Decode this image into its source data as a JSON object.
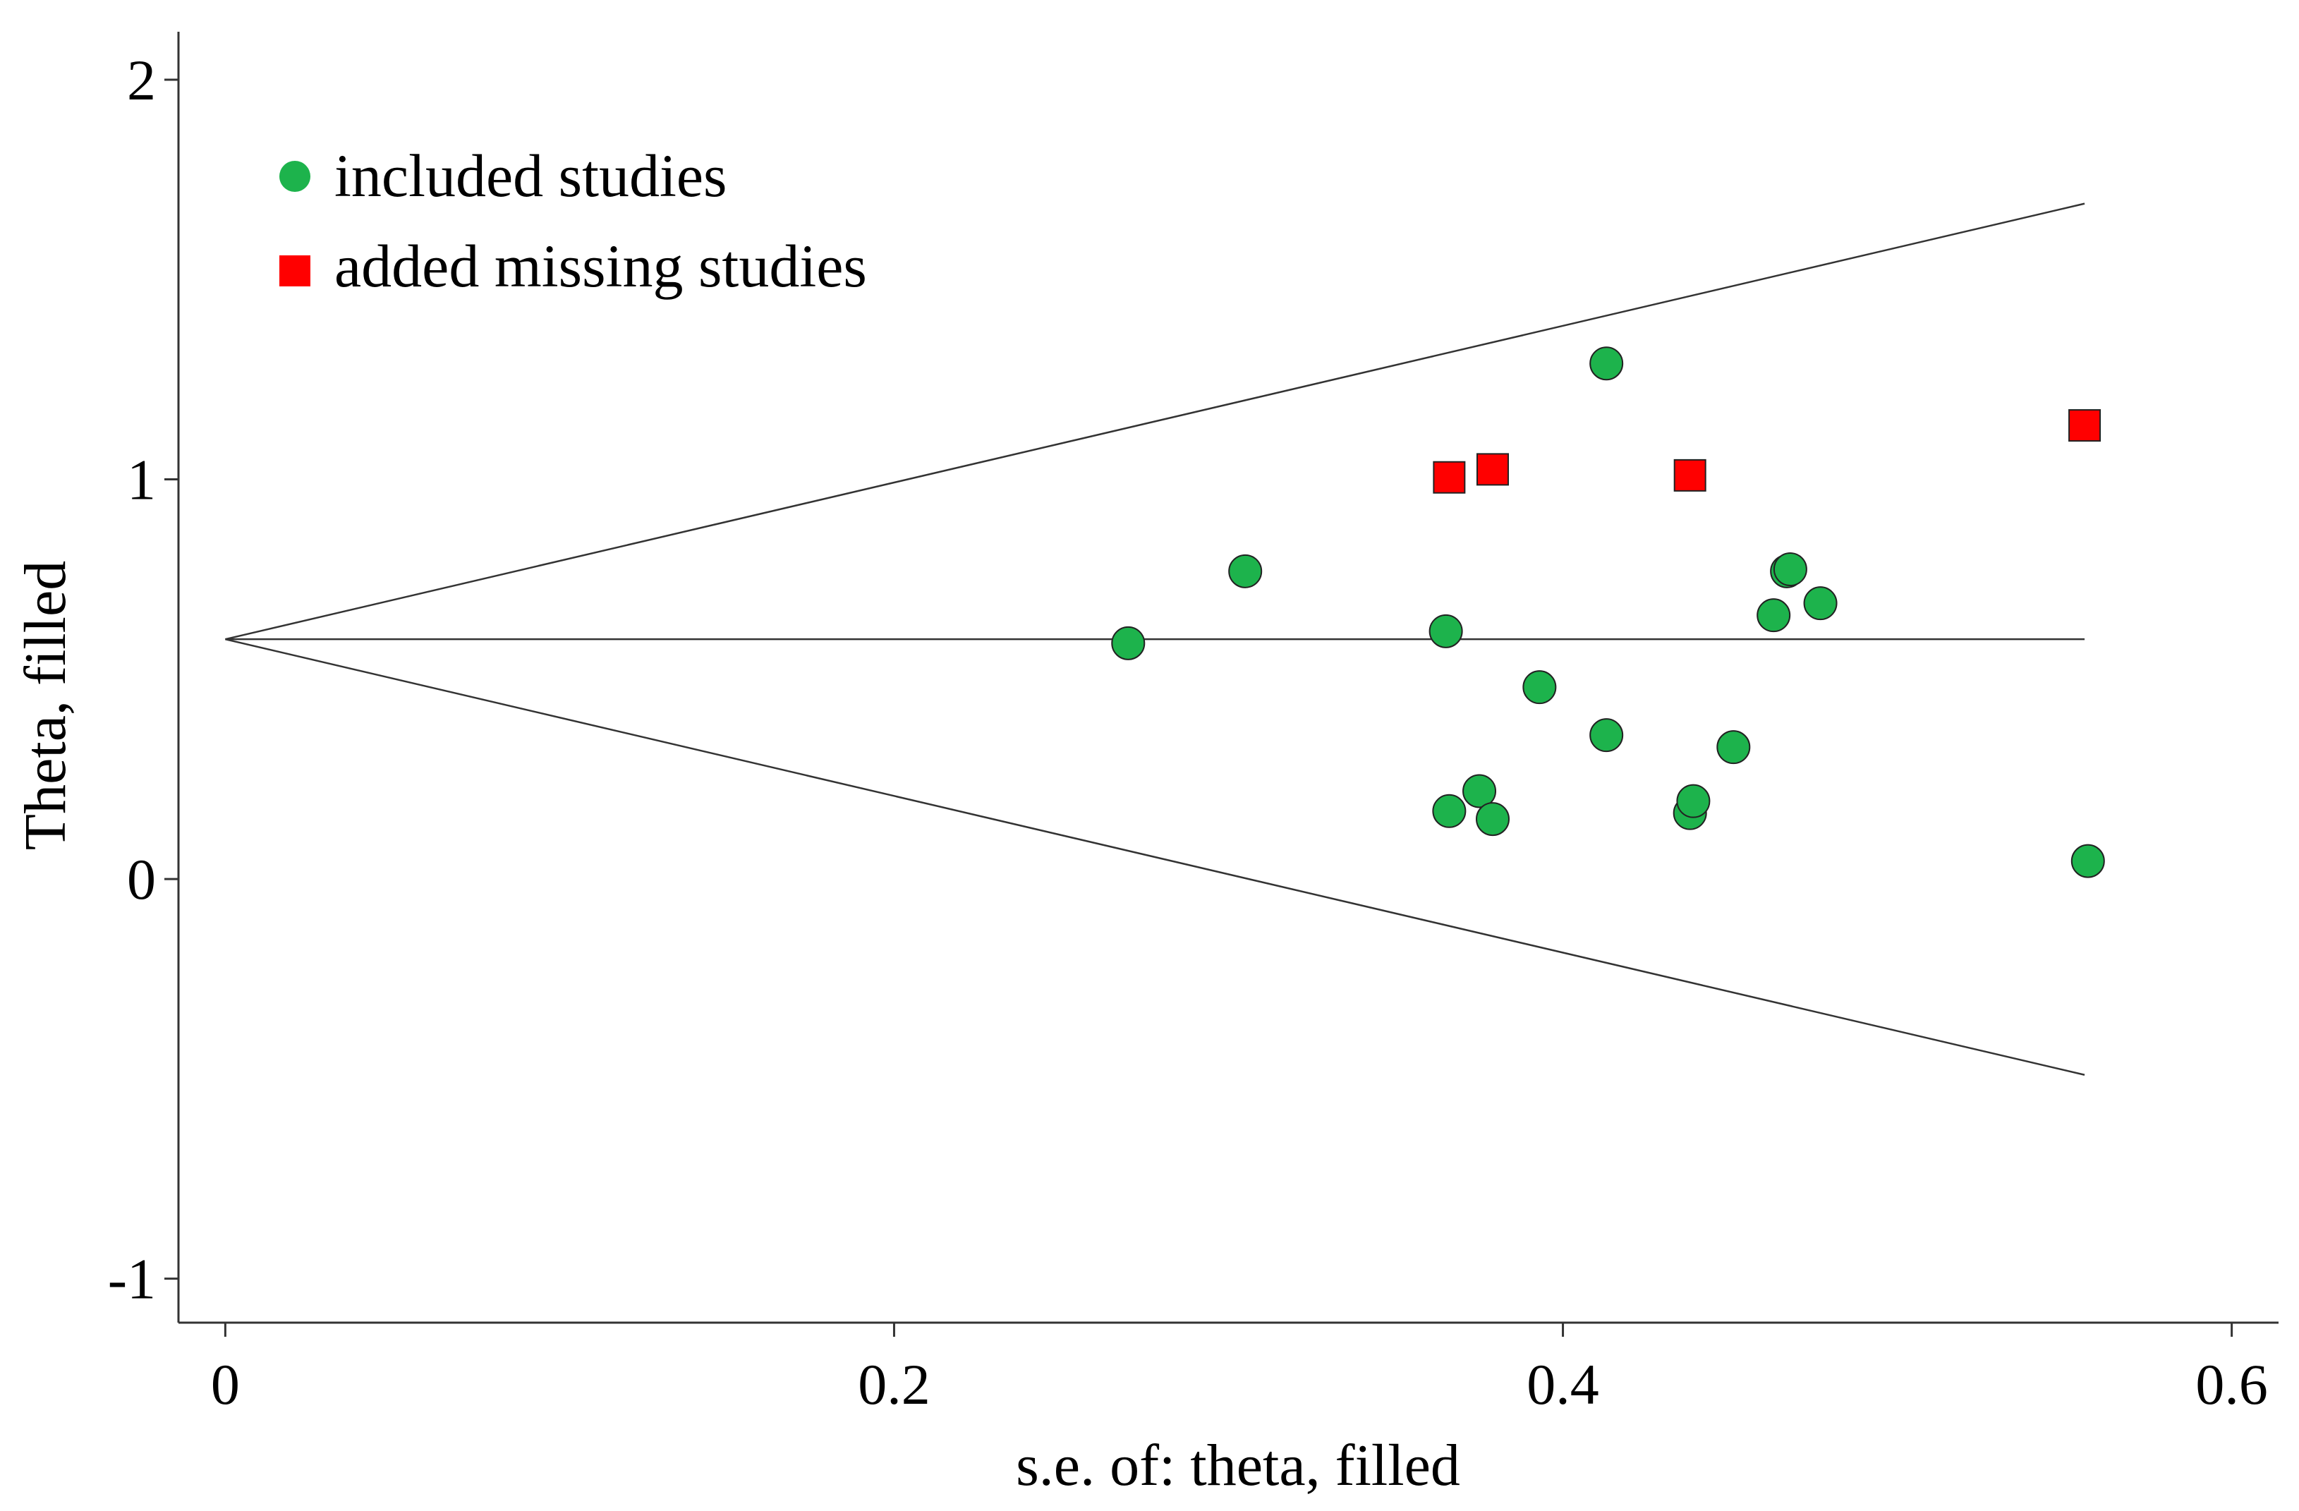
{
  "chart_data": {
    "type": "scatter",
    "title": "",
    "xlabel": "s.e. of: theta, filled",
    "ylabel": "Theta, filled",
    "xlim": [
      -0.014,
      0.614
    ],
    "ylim": [
      -1.11,
      2.12
    ],
    "x_ticks": [
      0,
      0.2,
      0.4,
      0.6
    ],
    "x_tick_labels": [
      "0",
      "0.2",
      "0.4",
      "0.6"
    ],
    "y_ticks": [
      -1,
      0,
      1,
      2
    ],
    "y_tick_labels": [
      "-1",
      "0",
      "1",
      "2"
    ],
    "grid": false,
    "legend_position": "top-left",
    "pooled_estimate": 0.6,
    "funnel": {
      "se_max": 0.556,
      "upper": [
        [
          0,
          0.6
        ],
        [
          0.556,
          1.69
        ]
      ],
      "lower": [
        [
          0,
          0.6
        ],
        [
          0.556,
          -0.49
        ]
      ],
      "center": [
        [
          0,
          0.6
        ],
        [
          0.556,
          0.6
        ]
      ]
    },
    "series": [
      {
        "name": "included studies",
        "marker": "circle",
        "color": "#1DB34C",
        "points": [
          [
            0.27,
            0.59
          ],
          [
            0.305,
            0.77
          ],
          [
            0.365,
            0.62
          ],
          [
            0.366,
            0.17
          ],
          [
            0.375,
            0.22
          ],
          [
            0.379,
            0.15
          ],
          [
            0.393,
            0.48
          ],
          [
            0.413,
            1.29
          ],
          [
            0.413,
            0.36
          ],
          [
            0.438,
            0.165
          ],
          [
            0.439,
            0.195
          ],
          [
            0.451,
            0.33
          ],
          [
            0.463,
            0.66
          ],
          [
            0.467,
            0.77
          ],
          [
            0.468,
            0.775
          ],
          [
            0.477,
            0.69
          ],
          [
            0.557,
            0.045
          ]
        ]
      },
      {
        "name": "added missing studies",
        "marker": "square",
        "color": "#FF0000",
        "points": [
          [
            0.366,
            1.005
          ],
          [
            0.379,
            1.025
          ],
          [
            0.438,
            1.01
          ],
          [
            0.556,
            1.135
          ]
        ]
      }
    ]
  }
}
